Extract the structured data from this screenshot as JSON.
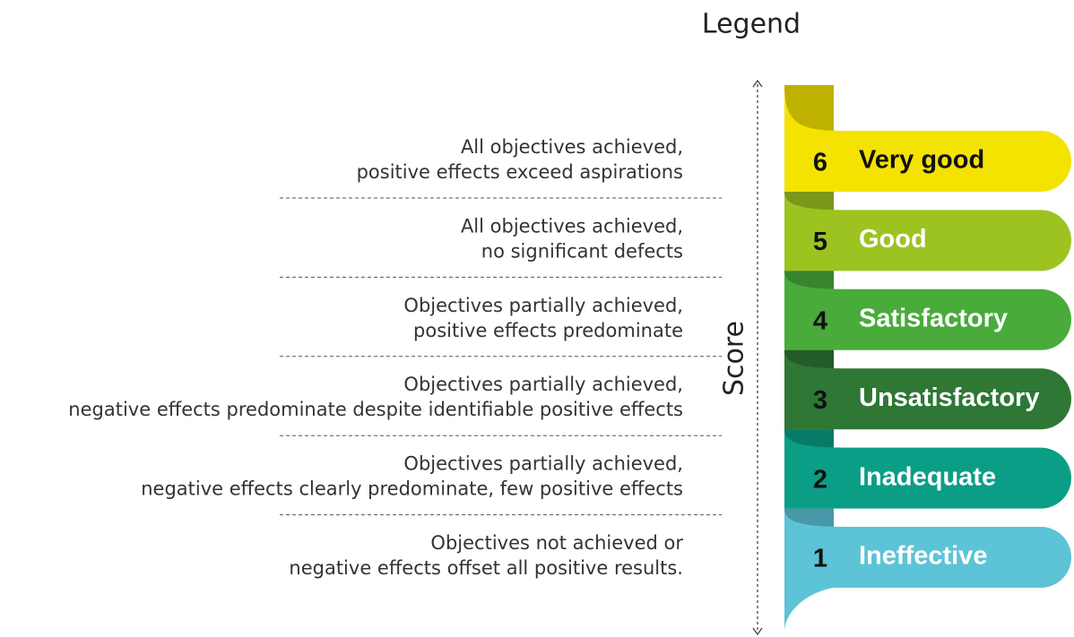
{
  "title": "Legend",
  "axis_label": "Score",
  "levels": [
    {
      "score": 6,
      "label": "Very good",
      "color": "#f4e300",
      "text_color": "#111111",
      "description": [
        "All objectives achieved,",
        "positive effects exceed aspirations"
      ]
    },
    {
      "score": 5,
      "label": "Good",
      "color": "#9cc320",
      "text_color": "#ffffff",
      "description": [
        "All objectives achieved,",
        "no significant defects"
      ]
    },
    {
      "score": 4,
      "label": "Satisfactory",
      "color": "#48ab3a",
      "text_color": "#ffffff",
      "description": [
        "Objectives partially achieved,",
        "positive effects predominate"
      ]
    },
    {
      "score": 3,
      "label": "Unsatisfactory",
      "color": "#2e7734",
      "text_color": "#ffffff",
      "description": [
        "Objectives partially achieved,",
        "negative effects predominate despite identifiable positive effects"
      ]
    },
    {
      "score": 2,
      "label": "Inadequate",
      "color": "#0b9e86",
      "text_color": "#ffffff",
      "description": [
        "Objectives partially achieved,",
        "negative effects clearly predominate, few positive effects"
      ]
    },
    {
      "score": 1,
      "label": "Ineffective",
      "color": "#5dc3d7",
      "text_color": "#ffffff",
      "description": [
        "Objectives not achieved or",
        "negative effects offset all positive results."
      ]
    }
  ]
}
